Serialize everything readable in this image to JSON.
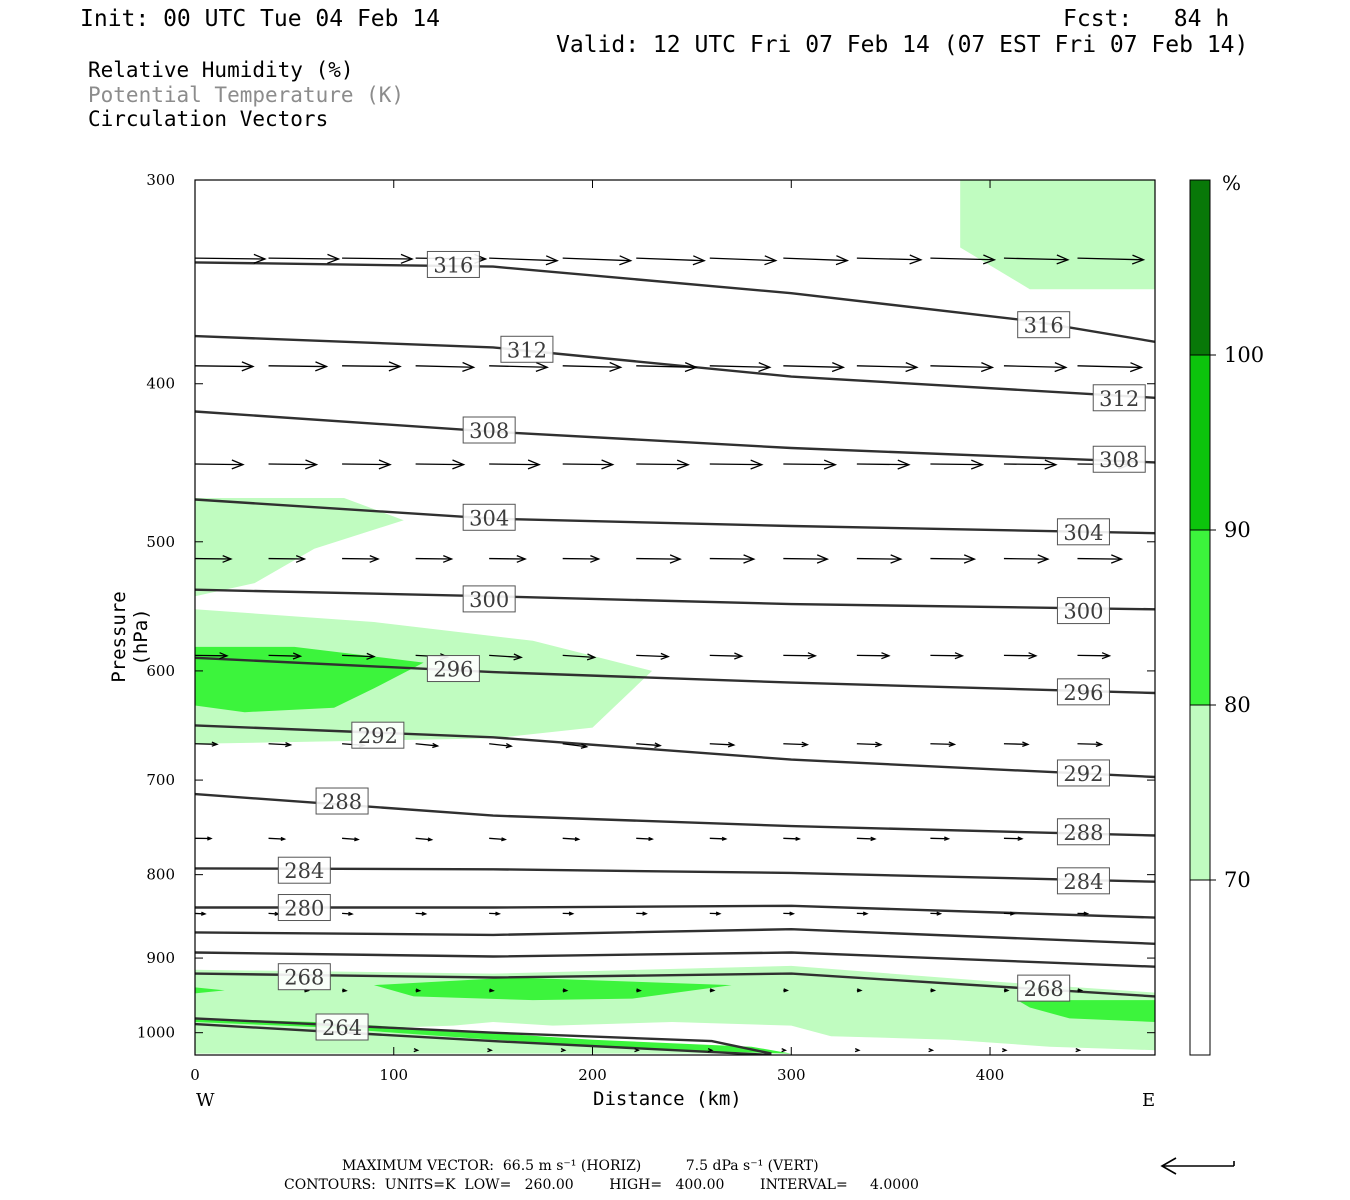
{
  "header": {
    "init": "Init: 00 UTC Tue 04 Feb 14",
    "fcst": "Fcst:   84 h",
    "valid": "Valid: 12 UTC Fri 07 Feb 14 (07 EST Fri 07 Feb 14)"
  },
  "legend": {
    "rh": "Relative Humidity (%)",
    "theta": "Potential Temperature (K)",
    "vectors": "Circulation Vectors"
  },
  "colors": {
    "rh_70_80": "#c0fcc0",
    "rh_80_90": "#3cf43c",
    "rh_90_100": "#0cc40c",
    "rh_100": "#087808",
    "theta_line": "#303030",
    "theta_label": "#3c3c3c",
    "legend_theta_text": "#8c8c8c"
  },
  "colorbar": {
    "unit": "%",
    "levels": [
      "100",
      "90",
      "80",
      "70"
    ]
  },
  "footer": {
    "max_vector": "MAXIMUM VECTOR:  66.5 m s⁻¹ (HORIZ)          7.5 dPa s⁻¹ (VERT)",
    "contours": "CONTOURS:  UNITS=K  LOW=   260.00        HIGH=   400.00        INTERVAL=     4.0000"
  },
  "chart_data": {
    "type": "cross-section",
    "xlabel": "Distance (km)",
    "ylabel": "Pressure (hPa)",
    "xlim": [
      0,
      483
    ],
    "ylim": [
      1032,
      300
    ],
    "yscale": "log",
    "x_ticks": [
      "0",
      "100",
      "200",
      "300",
      "400"
    ],
    "y_ticks": [
      "300",
      "400",
      "500",
      "600",
      "700",
      "800",
      "900",
      "1000"
    ],
    "x_end_labels": {
      "left": "W",
      "right": "E"
    },
    "theta_contours": [
      {
        "value": 316,
        "points": [
          [
            0,
            337
          ],
          [
            150,
            339
          ],
          [
            300,
            352
          ],
          [
            420,
            366
          ],
          [
            483,
            377
          ]
        ],
        "labels": [
          {
            "text": "316",
            "x": 130,
            "p": 338
          },
          {
            "text": "316",
            "x": 427,
            "p": 368
          }
        ]
      },
      {
        "value": 312,
        "points": [
          [
            0,
            374
          ],
          [
            150,
            380
          ],
          [
            300,
            396
          ],
          [
            483,
            408
          ]
        ],
        "labels": [
          {
            "text": "312",
            "x": 167,
            "p": 381
          },
          {
            "text": "312",
            "x": 465,
            "p": 408
          }
        ]
      },
      {
        "value": 308,
        "points": [
          [
            0,
            416
          ],
          [
            150,
            428
          ],
          [
            300,
            438
          ],
          [
            483,
            447
          ]
        ],
        "labels": [
          {
            "text": "308",
            "x": 148,
            "p": 427
          },
          {
            "text": "308",
            "x": 465,
            "p": 445
          }
        ]
      },
      {
        "value": 304,
        "points": [
          [
            0,
            471
          ],
          [
            150,
            484
          ],
          [
            300,
            489
          ],
          [
            483,
            494
          ]
        ],
        "labels": [
          {
            "text": "304",
            "x": 148,
            "p": 483
          },
          {
            "text": "304",
            "x": 447,
            "p": 493
          }
        ]
      },
      {
        "value": 300,
        "points": [
          [
            0,
            535
          ],
          [
            150,
            540
          ],
          [
            300,
            546
          ],
          [
            483,
            550
          ]
        ],
        "labels": [
          {
            "text": "300",
            "x": 148,
            "p": 542
          },
          {
            "text": "300",
            "x": 447,
            "p": 551
          }
        ]
      },
      {
        "value": 296,
        "points": [
          [
            0,
            589
          ],
          [
            150,
            601
          ],
          [
            300,
            610
          ],
          [
            483,
            619
          ]
        ],
        "labels": [
          {
            "text": "296",
            "x": 130,
            "p": 598
          },
          {
            "text": "296",
            "x": 447,
            "p": 618
          }
        ]
      },
      {
        "value": 292,
        "points": [
          [
            0,
            648
          ],
          [
            150,
            659
          ],
          [
            300,
            680
          ],
          [
            483,
            697
          ]
        ],
        "labels": [
          {
            "text": "292",
            "x": 92,
            "p": 657
          },
          {
            "text": "292",
            "x": 447,
            "p": 693
          }
        ]
      },
      {
        "value": 288,
        "points": [
          [
            0,
            714
          ],
          [
            150,
            736
          ],
          [
            300,
            747
          ],
          [
            483,
            757
          ]
        ],
        "labels": [
          {
            "text": "288",
            "x": 74,
            "p": 721
          },
          {
            "text": "288",
            "x": 447,
            "p": 753
          }
        ]
      },
      {
        "value": 284,
        "points": [
          [
            0,
            793
          ],
          [
            150,
            794
          ],
          [
            300,
            798
          ],
          [
            483,
            808
          ]
        ],
        "labels": [
          {
            "text": "284",
            "x": 55,
            "p": 795
          },
          {
            "text": "284",
            "x": 447,
            "p": 807
          }
        ]
      },
      {
        "value": 280,
        "points": [
          [
            0,
            838
          ],
          [
            150,
            838
          ],
          [
            300,
            836
          ],
          [
            483,
            850
          ]
        ],
        "labels": [
          {
            "text": "280",
            "x": 55,
            "p": 838
          }
        ]
      },
      {
        "value": 276,
        "points": [
          [
            0,
            868
          ],
          [
            150,
            871
          ],
          [
            300,
            864
          ],
          [
            483,
            882
          ]
        ],
        "labels": []
      },
      {
        "value": 272,
        "points": [
          [
            0,
            893
          ],
          [
            150,
            898
          ],
          [
            300,
            893
          ],
          [
            483,
            911
          ]
        ],
        "labels": []
      },
      {
        "value": 268,
        "points": [
          [
            0,
            920
          ],
          [
            150,
            925
          ],
          [
            300,
            920
          ],
          [
            483,
            950
          ]
        ],
        "labels": [
          {
            "text": "268",
            "x": 55,
            "p": 924
          },
          {
            "text": "268",
            "x": 427,
            "p": 939
          }
        ]
      },
      {
        "value": 264,
        "points": [
          [
            0,
            980
          ],
          [
            150,
            1000
          ],
          [
            260,
            1012
          ],
          [
            290,
            1030
          ]
        ],
        "labels": [
          {
            "text": "264",
            "x": 74,
            "p": 992
          }
        ]
      },
      {
        "value": 260,
        "points": [
          [
            0,
            988
          ],
          [
            150,
            1012
          ],
          [
            290,
            1032
          ]
        ],
        "labels": []
      }
    ],
    "rh_shading": [
      {
        "range": "70-80",
        "polygon": [
          [
            385,
            300
          ],
          [
            483,
            300
          ],
          [
            483,
            332
          ],
          [
            466,
            325
          ],
          [
            483,
            320
          ],
          [
            483,
            350
          ],
          [
            420,
            350
          ],
          [
            385,
            330
          ]
        ]
      },
      {
        "range": "70-80",
        "polygon": [
          [
            0,
            470
          ],
          [
            75,
            470
          ],
          [
            105,
            485
          ],
          [
            60,
            505
          ],
          [
            30,
            530
          ],
          [
            0,
            540
          ]
        ]
      },
      {
        "range": "70-80",
        "polygon": [
          [
            0,
            550
          ],
          [
            90,
            560
          ],
          [
            170,
            575
          ],
          [
            230,
            600
          ],
          [
            200,
            650
          ],
          [
            150,
            660
          ],
          [
            0,
            665
          ]
        ]
      },
      {
        "range": "70-80",
        "polygon": [
          [
            0,
            915
          ],
          [
            150,
            920
          ],
          [
            300,
            910
          ],
          [
            400,
            930
          ],
          [
            483,
            945
          ],
          [
            483,
            1025
          ],
          [
            430,
            1020
          ],
          [
            380,
            1010
          ],
          [
            320,
            1005
          ],
          [
            300,
            990
          ],
          [
            240,
            985
          ],
          [
            180,
            990
          ],
          [
            150,
            985
          ],
          [
            130,
            990
          ],
          [
            80,
            995
          ],
          [
            150,
            1010
          ],
          [
            250,
            1020
          ],
          [
            300,
            1030
          ],
          [
            0,
            1030
          ]
        ]
      },
      {
        "range": "80-90",
        "polygon": [
          [
            0,
            580
          ],
          [
            50,
            580
          ],
          [
            115,
            593
          ],
          [
            90,
            615
          ],
          [
            70,
            632
          ],
          [
            25,
            636
          ],
          [
            0,
            630
          ]
        ]
      },
      {
        "range": "80-90",
        "polygon": [
          [
            0,
            938
          ],
          [
            15,
            942
          ],
          [
            0,
            946
          ]
        ]
      },
      {
        "range": "80-90",
        "polygon": [
          [
            90,
            935
          ],
          [
            160,
            925
          ],
          [
            270,
            935
          ],
          [
            220,
            953
          ],
          [
            170,
            955
          ],
          [
            110,
            950
          ]
        ]
      },
      {
        "range": "80-90",
        "polygon": [
          [
            415,
            957
          ],
          [
            440,
            955
          ],
          [
            483,
            955
          ],
          [
            483,
            985
          ],
          [
            440,
            980
          ],
          [
            420,
            965
          ]
        ]
      },
      {
        "range": "80-90",
        "polygon": [
          [
            0,
            980
          ],
          [
            60,
            985
          ],
          [
            120,
            995
          ],
          [
            200,
            1010
          ],
          [
            280,
            1020
          ],
          [
            300,
            1030
          ],
          [
            240,
            1025
          ],
          [
            150,
            1010
          ],
          [
            60,
            992
          ],
          [
            0,
            985
          ]
        ]
      }
    ],
    "vectors_rows": [
      {
        "p": 335,
        "xs": [
          0,
          37,
          74,
          111,
          148,
          185,
          222,
          259,
          296,
          333,
          370,
          407,
          444
        ],
        "u": [
          35,
          35,
          35,
          35,
          34,
          34,
          34,
          33,
          32,
          32,
          32,
          32,
          33
        ],
        "w": [
          0.1,
          0.1,
          0.1,
          0.1,
          0.3,
          0.3,
          0.3,
          0.3,
          0.3,
          0.2,
          0.2,
          0.2,
          0.2
        ]
      },
      {
        "p": 390,
        "xs": [
          0,
          37,
          74,
          111,
          148,
          185,
          222,
          259,
          296,
          333,
          370,
          407,
          444
        ],
        "u": [
          29,
          29,
          29,
          29,
          29,
          29,
          30,
          30,
          30,
          30,
          31,
          31,
          32
        ],
        "w": [
          0.1,
          0.1,
          0.1,
          0.2,
          0.2,
          0.2,
          0.2,
          0.2,
          0.2,
          0.2,
          0.2,
          0.2,
          0.2
        ]
      },
      {
        "p": 448,
        "xs": [
          0,
          37,
          74,
          111,
          148,
          185,
          222,
          259,
          296,
          333,
          370,
          407,
          444
        ],
        "u": [
          24,
          24,
          24,
          24,
          25,
          25,
          26,
          26,
          26,
          26,
          26,
          26,
          26
        ],
        "w": [
          0.1,
          0.1,
          0.1,
          0.1,
          0.1,
          0.1,
          0.1,
          0.1,
          0.1,
          0.1,
          0.1,
          0.1,
          0.1
        ]
      },
      {
        "p": 512,
        "xs": [
          0,
          37,
          74,
          111,
          148,
          185,
          222,
          259,
          296,
          333,
          370,
          407,
          444
        ],
        "u": [
          18,
          18,
          18,
          18,
          18,
          18,
          22,
          22,
          22,
          22,
          22,
          22,
          22
        ],
        "w": [
          0.1,
          0.1,
          0.1,
          0.1,
          0.1,
          0.1,
          0.1,
          0.1,
          0.1,
          0.1,
          0.1,
          0.1,
          0.1
        ]
      },
      {
        "p": 587,
        "xs": [
          0,
          37,
          74,
          111,
          148,
          185,
          222,
          259,
          296,
          333,
          370,
          407,
          444
        ],
        "u": [
          16,
          16,
          16,
          16,
          16,
          16,
          16,
          16,
          16,
          16,
          16,
          16,
          16
        ],
        "w": [
          0.1,
          0.2,
          0.3,
          0.4,
          0.5,
          0.5,
          0.3,
          0.2,
          0.1,
          0.1,
          0.1,
          0.1,
          0.1
        ]
      },
      {
        "p": 665,
        "xs": [
          0,
          37,
          74,
          111,
          148,
          185,
          222,
          259,
          296,
          333,
          370,
          407,
          444
        ],
        "u": [
          11,
          11,
          11,
          11,
          11,
          12,
          12,
          12,
          12,
          12,
          12,
          12,
          12
        ],
        "w": [
          0.2,
          0.4,
          0.6,
          0.8,
          0.9,
          1.0,
          0.6,
          0.4,
          0.3,
          0.3,
          0.2,
          0.2,
          0.2
        ]
      },
      {
        "p": 760,
        "xs": [
          0,
          37,
          74,
          111,
          148,
          185,
          222,
          259,
          296,
          333,
          370,
          407,
          444
        ],
        "u": [
          8,
          8,
          8,
          8,
          8,
          8,
          8,
          8,
          8,
          9,
          9,
          9,
          9
        ],
        "w": [
          0.1,
          0.4,
          0.6,
          0.7,
          0.6,
          0.5,
          0.4,
          0.3,
          0.3,
          0.3,
          0.2,
          0.2,
          0.2
        ]
      },
      {
        "p": 845,
        "xs": [
          0,
          37,
          74,
          111,
          148,
          185,
          222,
          259,
          296,
          333,
          370,
          407,
          444
        ],
        "u": [
          5,
          5,
          5,
          5,
          5,
          5,
          5,
          5,
          5,
          5,
          5,
          5,
          5
        ],
        "w": [
          0.4,
          0.5,
          0.5,
          0.4,
          0.3,
          0.2,
          0.2,
          0.2,
          0.2,
          0.2,
          0.2,
          0.2,
          0.2
        ]
      },
      {
        "p": 942,
        "xs": [
          55,
          74,
          111,
          148,
          185,
          222,
          259,
          296,
          333,
          370,
          407,
          444
        ],
        "u": [
          2,
          2,
          2,
          2,
          2,
          2,
          2,
          2,
          2,
          2,
          2,
          2
        ],
        "w": [
          0.5,
          0.6,
          0.7,
          0.6,
          0.5,
          0.4,
          0.3,
          0.3,
          0.3,
          0.3,
          0.3,
          0.3
        ]
      },
      {
        "p": 1025,
        "xs": [
          111,
          148,
          185,
          222,
          259,
          296,
          333,
          370,
          407,
          444
        ],
        "u": [
          1,
          1,
          1,
          1,
          1,
          1,
          1,
          1,
          1,
          1
        ],
        "w": [
          0.4,
          0.4,
          0.4,
          0.3,
          0.3,
          0.3,
          0.3,
          0.3,
          0.3,
          0.3
        ]
      }
    ]
  }
}
